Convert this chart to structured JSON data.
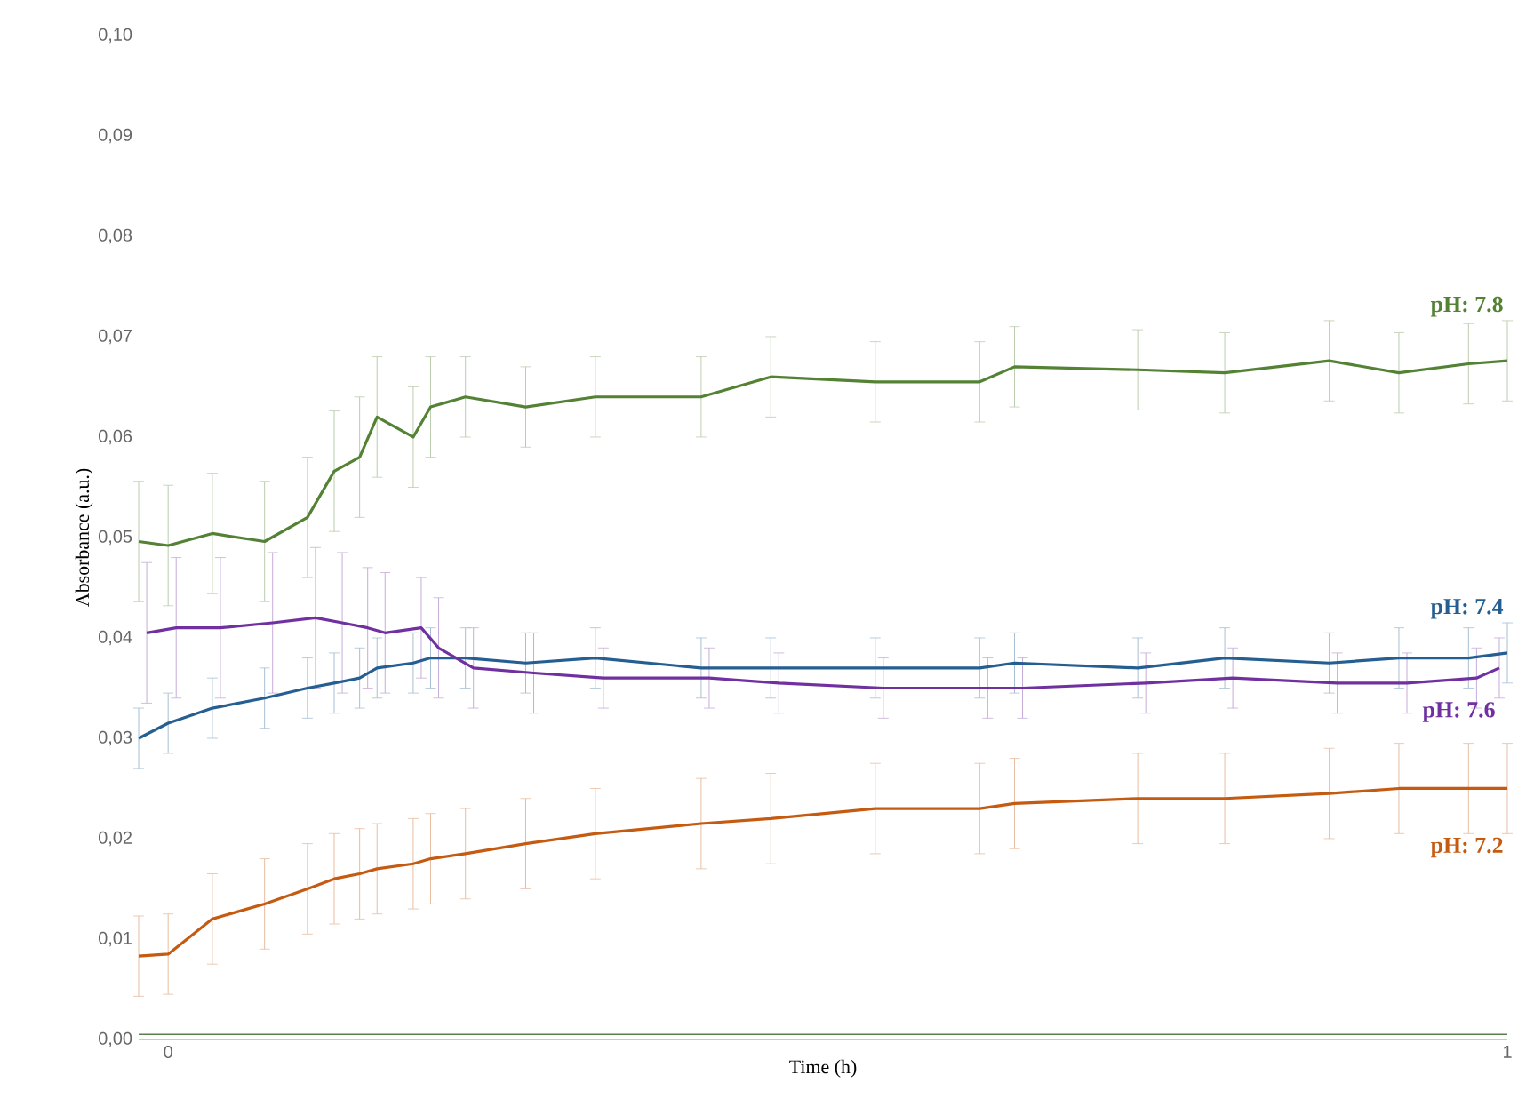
{
  "chart_data": {
    "type": "line",
    "xlabel": "Time (h)",
    "ylabel": "Absorbance (a.u.)",
    "x": [
      -0.022,
      0,
      0.033,
      0.072,
      0.104,
      0.124,
      0.143,
      0.156,
      0.183,
      0.196,
      0.222,
      0.267,
      0.319,
      0.398,
      0.45,
      0.528,
      0.606,
      0.632,
      0.724,
      0.789,
      0.867,
      0.919,
      0.971,
      1.0
    ],
    "xlim": [
      -0.022,
      1.0
    ],
    "xticks": [
      0,
      {
        "value": 1.0,
        "label": "1"
      }
    ],
    "ylim": [
      0,
      0.1
    ],
    "yticks": [
      {
        "value": 0,
        "label": "0,00"
      },
      {
        "value": 0.01,
        "label": "0,01"
      },
      {
        "value": 0.02,
        "label": "0,02"
      },
      {
        "value": 0.03,
        "label": "0,03"
      },
      {
        "value": 0.04,
        "label": "0,04"
      },
      {
        "value": 0.05,
        "label": "0,05"
      },
      {
        "value": 0.06,
        "label": "0,06"
      },
      {
        "value": 0.07,
        "label": "0,07"
      },
      {
        "value": 0.08,
        "label": "0,08"
      },
      {
        "value": 0.09,
        "label": "0,09"
      },
      {
        "value": 0.1,
        "label": "0,10"
      }
    ],
    "series": [
      {
        "name": "pH: 7.8",
        "color": "#548235",
        "values": [
          0.0496,
          0.0492,
          0.0504,
          0.0496,
          0.052,
          0.0566,
          0.058,
          0.062,
          0.06,
          0.063,
          0.064,
          0.063,
          0.064,
          0.064,
          0.066,
          0.0655,
          0.0655,
          0.067,
          0.0667,
          0.0664,
          0.0676,
          0.0664,
          0.0673,
          0.0676
        ],
        "errors": [
          0.006,
          0.006,
          0.006,
          0.006,
          0.006,
          0.006,
          0.006,
          0.006,
          0.005,
          0.005,
          0.004,
          0.004,
          0.004,
          0.004,
          0.004,
          0.004,
          0.004,
          0.004,
          0.004,
          0.004,
          0.004,
          0.004,
          0.004,
          0.004
        ]
      },
      {
        "name": "pH: 7.4",
        "color": "#255e91",
        "values": [
          0.03,
          0.0315,
          0.033,
          0.034,
          0.035,
          0.0355,
          0.036,
          0.037,
          0.0375,
          0.038,
          0.038,
          0.0375,
          0.038,
          0.037,
          0.037,
          0.037,
          0.037,
          0.0375,
          0.037,
          0.038,
          0.0375,
          0.038,
          0.038,
          0.0385
        ],
        "errors": [
          0.003,
          0.003,
          0.003,
          0.003,
          0.003,
          0.003,
          0.003,
          0.003,
          0.003,
          0.003,
          0.003,
          0.003,
          0.003,
          0.003,
          0.003,
          0.003,
          0.003,
          0.003,
          0.003,
          0.003,
          0.003,
          0.003,
          0.003,
          0.003
        ]
      },
      {
        "name": "pH: 7.6",
        "color": "#7030a0",
        "x": [
          -0.016,
          0.006,
          0.039,
          0.078,
          0.11,
          0.13,
          0.149,
          0.162,
          0.189,
          0.202,
          0.228,
          0.273,
          0.325,
          0.404,
          0.456,
          0.534,
          0.612,
          0.638,
          0.73,
          0.795,
          0.873,
          0.925,
          0.977,
          0.994
        ],
        "values": [
          0.0405,
          0.041,
          0.041,
          0.0415,
          0.042,
          0.0415,
          0.041,
          0.0405,
          0.041,
          0.039,
          0.037,
          0.0365,
          0.036,
          0.036,
          0.0355,
          0.035,
          0.035,
          0.035,
          0.0355,
          0.036,
          0.0355,
          0.0355,
          0.036,
          0.037
        ],
        "errors": [
          0.007,
          0.007,
          0.007,
          0.007,
          0.007,
          0.007,
          0.006,
          0.006,
          0.005,
          0.005,
          0.004,
          0.004,
          0.003,
          0.003,
          0.003,
          0.003,
          0.003,
          0.003,
          0.003,
          0.003,
          0.003,
          0.003,
          0.003,
          0.003
        ]
      },
      {
        "name": "pH: 7.2",
        "color": "#c55a11",
        "values": [
          0.0083,
          0.0085,
          0.012,
          0.0135,
          0.015,
          0.016,
          0.0165,
          0.017,
          0.0175,
          0.018,
          0.0185,
          0.0195,
          0.0205,
          0.0215,
          0.022,
          0.023,
          0.023,
          0.0235,
          0.024,
          0.024,
          0.0245,
          0.025,
          0.025,
          0.025
        ],
        "errors": [
          0.004,
          0.004,
          0.0045,
          0.0045,
          0.0045,
          0.0045,
          0.0045,
          0.0045,
          0.0045,
          0.0045,
          0.0045,
          0.0045,
          0.0045,
          0.0045,
          0.0045,
          0.0045,
          0.0045,
          0.0045,
          0.0045,
          0.0045,
          0.0045,
          0.0045,
          0.0045,
          0.0045
        ]
      },
      {
        "color": "#5b7f4f",
        "values": [
          0.0005,
          0.0005,
          0.0005,
          0.0005,
          0.0005,
          0.0005,
          0.0005,
          0.0005,
          0.0005,
          0.0005,
          0.0005,
          0.0005,
          0.0005,
          0.0005,
          0.0005,
          0.0005,
          0.0005,
          0.0005,
          0.0005,
          0.0005,
          0.0005,
          0.0005,
          0.0005,
          0.0005
        ]
      },
      {
        "color": "#e6a3a3",
        "values": [
          0,
          0,
          0,
          0,
          0,
          0,
          0,
          0,
          0,
          0,
          0,
          0,
          0,
          0,
          0,
          0,
          0,
          0,
          0,
          0,
          0,
          0,
          0,
          0
        ]
      }
    ]
  }
}
